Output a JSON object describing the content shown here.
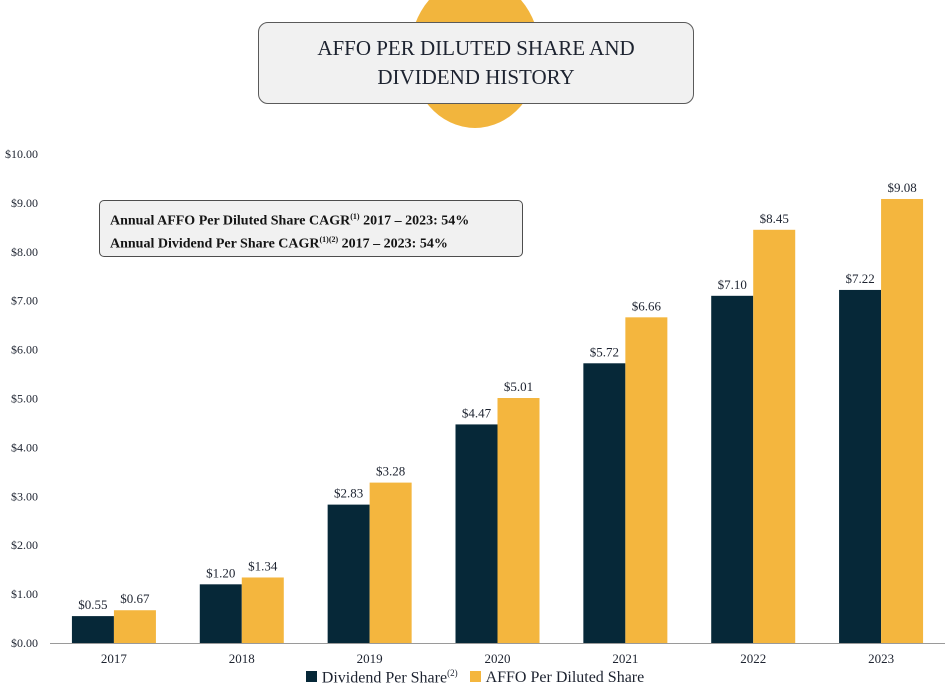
{
  "title": {
    "line1": "AFFO PER DILUTED SHARE AND",
    "line2": "DIVIDEND HISTORY"
  },
  "cagr": {
    "line1_text": "Annual AFFO Per Diluted Share CAGR",
    "line1_sup": "(1)",
    "line1_tail": " 2017 – 2023:  54%",
    "line2_text": "Annual Dividend Per Share CAGR",
    "line2_sup": "(1)(2)",
    "line2_tail": " 2017 – 2023:  54%"
  },
  "legend": {
    "dividend_label": "Dividend Per Share",
    "dividend_sup": "(2)",
    "affo_label": "AFFO Per Diluted Share"
  },
  "colors": {
    "dividend": "#062838",
    "affo": "#f4b63e",
    "accent_circle": "#f2b53d"
  },
  "chart_data": {
    "type": "bar",
    "title": "AFFO PER DILUTED SHARE AND DIVIDEND HISTORY",
    "categories": [
      "2017",
      "2018",
      "2019",
      "2020",
      "2021",
      "2022",
      "2023"
    ],
    "series": [
      {
        "name": "Dividend Per Share(2)",
        "values": [
          0.55,
          1.2,
          2.83,
          4.47,
          5.72,
          7.1,
          7.22
        ],
        "labels": [
          "$0.55",
          "$1.20",
          "$2.83",
          "$4.47",
          "$5.72",
          "$7.10",
          "$7.22"
        ]
      },
      {
        "name": "AFFO Per Diluted Share",
        "values": [
          0.67,
          1.34,
          3.28,
          5.01,
          6.66,
          8.45,
          9.08
        ],
        "labels": [
          "$0.67",
          "$1.34",
          "$3.28",
          "$5.01",
          "$6.66",
          "$8.45",
          "$9.08"
        ]
      }
    ],
    "ylim": [
      0,
      10
    ],
    "yticks": [
      {
        "value": 0,
        "label": "$0.00"
      },
      {
        "value": 1,
        "label": "$1.00"
      },
      {
        "value": 2,
        "label": "$2.00"
      },
      {
        "value": 3,
        "label": "$3.00"
      },
      {
        "value": 4,
        "label": "$4.00"
      },
      {
        "value": 5,
        "label": "$5.00"
      },
      {
        "value": 6,
        "label": "$6.00"
      },
      {
        "value": 7,
        "label": "$7.00"
      },
      {
        "value": 8,
        "label": "$8.00"
      },
      {
        "value": 9,
        "label": "$9.00"
      },
      {
        "value": 10,
        "label": "$10.00"
      }
    ],
    "xlabel": "",
    "ylabel": "",
    "grid": false,
    "legend_position": "bottom"
  }
}
